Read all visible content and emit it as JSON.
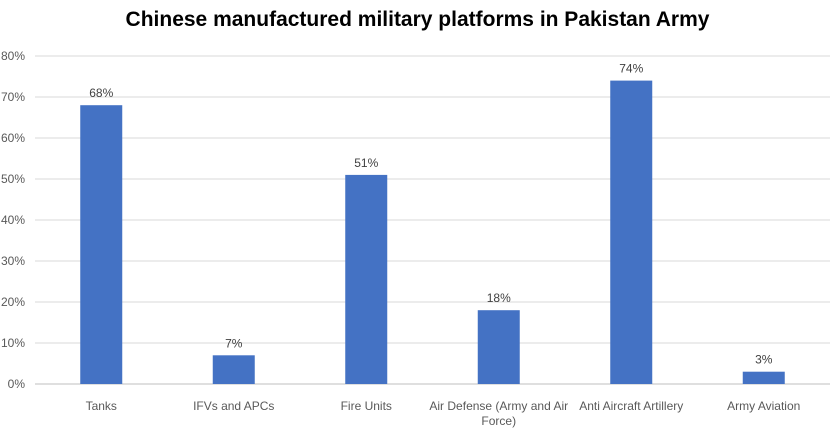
{
  "chart_data": {
    "type": "bar",
    "title": "Chinese manufactured military platforms in Pakistan Army",
    "categories": [
      "Tanks",
      "IFVs and APCs",
      "Fire Units",
      "Air Defense (Army and Air Force)",
      "Anti Aircraft Artillery",
      "Army Aviation"
    ],
    "category_lines": [
      [
        "Tanks"
      ],
      [
        "IFVs and APCs"
      ],
      [
        "Fire Units"
      ],
      [
        "Air Defense (Army and Air",
        "Force)"
      ],
      [
        "Anti Aircraft Artillery"
      ],
      [
        "Army Aviation"
      ]
    ],
    "values": [
      68,
      7,
      51,
      18,
      74,
      3
    ],
    "data_labels": [
      "68%",
      "7%",
      "51%",
      "18%",
      "74%",
      "3%"
    ],
    "y_ticks": [
      0,
      10,
      20,
      30,
      40,
      50,
      60,
      70,
      80
    ],
    "y_tick_labels": [
      "0%",
      "10%",
      "20%",
      "30%",
      "40%",
      "50%",
      "60%",
      "70%",
      "80%"
    ],
    "ylim": [
      0,
      80
    ],
    "grid": true,
    "legend": "none",
    "xlabel": "",
    "ylabel": "",
    "colors": {
      "bar": "#4472C4",
      "grid": "#D9D9D9"
    }
  }
}
